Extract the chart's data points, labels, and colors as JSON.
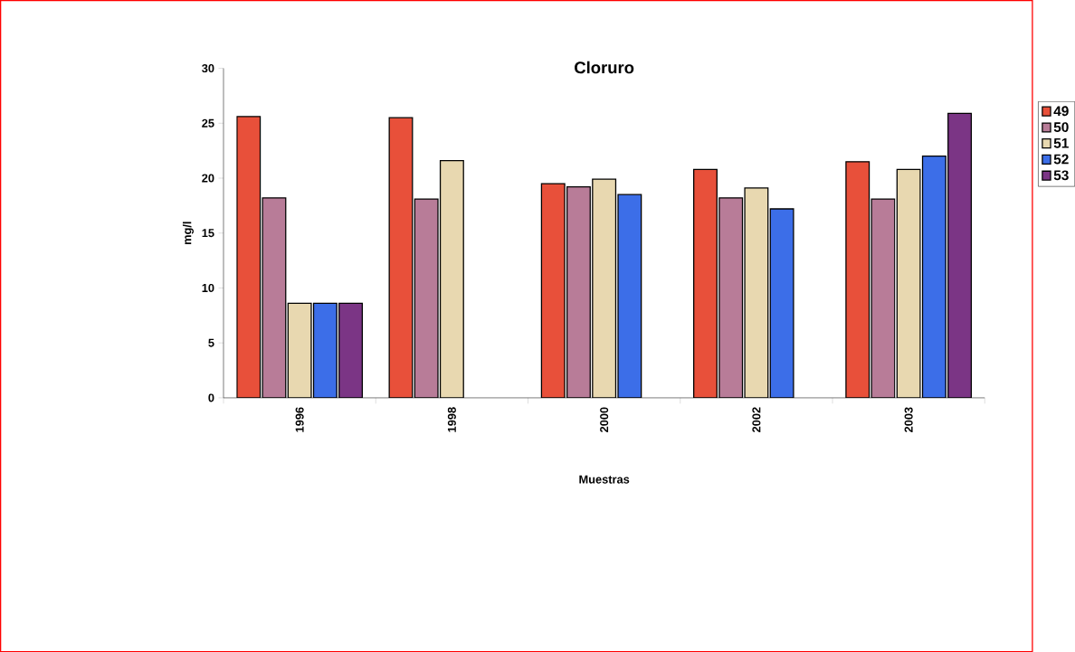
{
  "chart_data": {
    "type": "bar",
    "title": "Cloruro",
    "xlabel": "Muestras",
    "ylabel": "mg/l",
    "categories": [
      "1996",
      "1998",
      "2000",
      "2002",
      "2003"
    ],
    "series": [
      {
        "name": "49",
        "color": "#e8503a",
        "values": [
          25.6,
          25.5,
          19.5,
          20.8,
          21.5
        ]
      },
      {
        "name": "50",
        "color": "#b87c98",
        "values": [
          18.2,
          18.1,
          19.2,
          18.2,
          18.1
        ]
      },
      {
        "name": "51",
        "color": "#e8d8b0",
        "values": [
          8.6,
          21.6,
          19.9,
          19.1,
          20.8
        ]
      },
      {
        "name": "52",
        "color": "#3c6ee8",
        "values": [
          8.6,
          null,
          18.5,
          17.2,
          22.0
        ]
      },
      {
        "name": "53",
        "color": "#7b3585",
        "values": [
          8.6,
          null,
          null,
          null,
          25.9
        ]
      }
    ],
    "ylim": [
      0,
      30
    ],
    "yticks": [
      0,
      5,
      10,
      15,
      20,
      25,
      30
    ],
    "grid": false,
    "legend": "right"
  }
}
